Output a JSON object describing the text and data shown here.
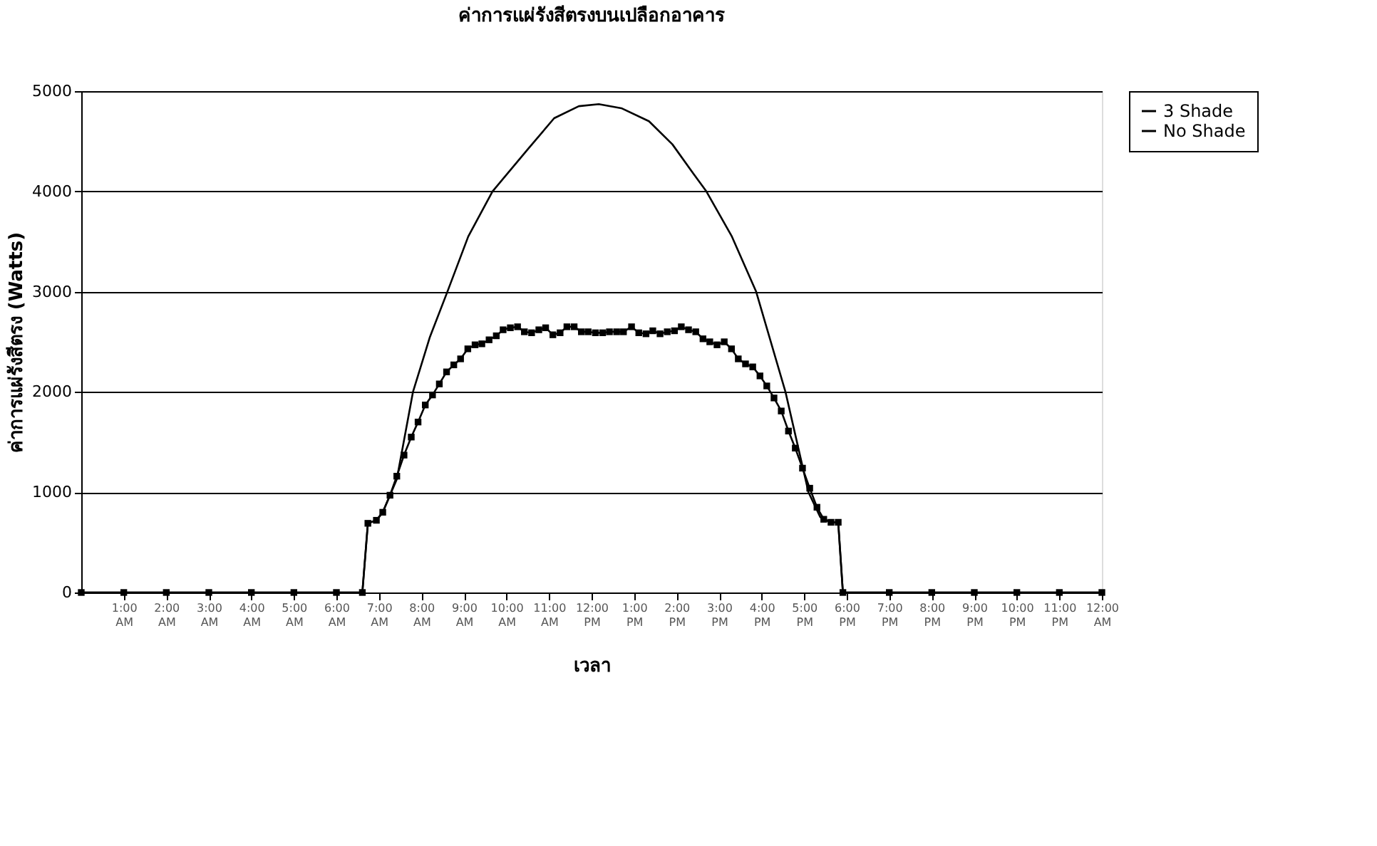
{
  "chart_data": {
    "type": "line",
    "title": "ค่าการแผ่รังสีตรงบนเปลือกอาคาร",
    "xlabel": "เวลา",
    "ylabel": "ค่าการแผ่รังสีตรง (Watts)",
    "xlim": [
      0,
      24
    ],
    "ylim": [
      0,
      5000
    ],
    "yticks": [
      0,
      1000,
      2000,
      3000,
      4000,
      5000
    ],
    "xticks": [
      {
        "value": 1,
        "label": "1:00 AM"
      },
      {
        "value": 2,
        "label": "2:00 AM"
      },
      {
        "value": 3,
        "label": "3:00 AM"
      },
      {
        "value": 4,
        "label": "4:00 AM"
      },
      {
        "value": 5,
        "label": "5:00 AM"
      },
      {
        "value": 6,
        "label": "6:00 AM"
      },
      {
        "value": 7,
        "label": "7:00 AM"
      },
      {
        "value": 8,
        "label": "8:00 AM"
      },
      {
        "value": 9,
        "label": "9:00 AM"
      },
      {
        "value": 10,
        "label": "10:00 AM"
      },
      {
        "value": 11,
        "label": "11:00 AM"
      },
      {
        "value": 12,
        "label": "12:00 PM"
      },
      {
        "value": 13,
        "label": "1:00 PM"
      },
      {
        "value": 14,
        "label": "2:00 PM"
      },
      {
        "value": 15,
        "label": "3:00 PM"
      },
      {
        "value": 16,
        "label": "4:00 PM"
      },
      {
        "value": 17,
        "label": "5:00 PM"
      },
      {
        "value": 18,
        "label": "6:00 PM"
      },
      {
        "value": 19,
        "label": "7:00 PM"
      },
      {
        "value": 20,
        "label": "8:00 PM"
      },
      {
        "value": 21,
        "label": "9:00 PM"
      },
      {
        "value": 22,
        "label": "10:00 PM"
      },
      {
        "value": 23,
        "label": "11:00 PM"
      },
      {
        "value": 24,
        "label": "12:00 AM"
      }
    ],
    "grid": "y",
    "legend": "right",
    "series": [
      {
        "name": "3 Shade",
        "color": "#000000",
        "marker": "square",
        "x": [
          0,
          1,
          2,
          3,
          4,
          5,
          6,
          6.61,
          6.74,
          6.94,
          7.09,
          7.26,
          7.42,
          7.59,
          7.76,
          7.92,
          8.09,
          8.26,
          8.42,
          8.59,
          8.76,
          8.92,
          9.09,
          9.26,
          9.42,
          9.59,
          9.76,
          9.92,
          10.09,
          10.26,
          10.42,
          10.59,
          10.76,
          10.92,
          11.09,
          11.26,
          11.42,
          11.59,
          11.76,
          11.92,
          12.09,
          12.26,
          12.42,
          12.59,
          12.75,
          12.94,
          13.11,
          13.28,
          13.44,
          13.61,
          13.78,
          13.95,
          14.11,
          14.28,
          14.45,
          14.62,
          14.78,
          14.95,
          15.12,
          15.29,
          15.45,
          15.62,
          15.79,
          15.96,
          16.12,
          16.29,
          16.46,
          16.63,
          16.79,
          16.96,
          17.13,
          17.3,
          17.46,
          17.63,
          17.8,
          17.91,
          19,
          20,
          21,
          22,
          23,
          24
        ],
        "values": [
          0,
          0,
          0,
          0,
          0,
          0,
          0,
          0,
          690,
          720,
          800,
          970,
          1160,
          1370,
          1550,
          1700,
          1870,
          1970,
          2080,
          2200,
          2270,
          2330,
          2430,
          2470,
          2480,
          2520,
          2560,
          2620,
          2640,
          2650,
          2600,
          2590,
          2620,
          2640,
          2570,
          2590,
          2650,
          2650,
          2600,
          2600,
          2590,
          2590,
          2600,
          2600,
          2600,
          2650,
          2590,
          2580,
          2610,
          2580,
          2600,
          2610,
          2650,
          2620,
          2600,
          2530,
          2500,
          2470,
          2500,
          2430,
          2330,
          2280,
          2250,
          2160,
          2060,
          1940,
          1810,
          1610,
          1440,
          1240,
          1040,
          850,
          730,
          700,
          700,
          0,
          0,
          0,
          0,
          0,
          0,
          0
        ]
      },
      {
        "name": "No Shade",
        "color": "#000000",
        "marker": "none",
        "x": [
          0,
          6.61,
          6.74,
          6.94,
          7.09,
          7.42,
          7.8,
          8.2,
          8.61,
          9.1,
          9.67,
          10.5,
          11.12,
          11.7,
          12.17,
          12.7,
          13.35,
          13.9,
          14.39,
          14.7,
          15.3,
          15.87,
          16.56,
          17.1,
          17.38,
          17.63,
          17.8,
          17.91,
          24
        ],
        "values": [
          0,
          0,
          690,
          720,
          800,
          1130,
          2000,
          2550,
          3000,
          3550,
          4000,
          4420,
          4730,
          4850,
          4870,
          4830,
          4700,
          4470,
          4180,
          4000,
          3550,
          3000,
          2000,
          1000,
          750,
          700,
          700,
          0,
          0
        ]
      }
    ]
  }
}
